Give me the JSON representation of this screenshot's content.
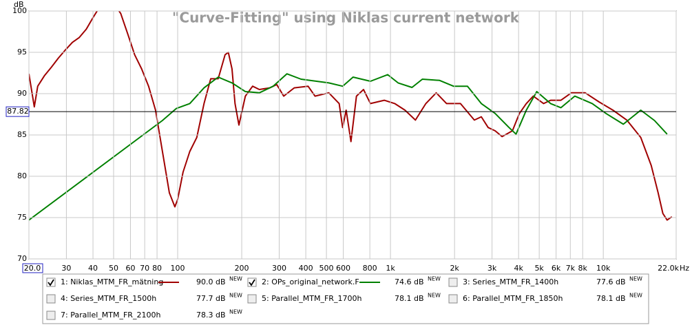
{
  "chart_data": {
    "type": "line",
    "title": "\"Curve-Fitting\" using Niklas current network",
    "y_label": "dB",
    "x_unit": "Hz",
    "x_scale": "log",
    "xlim": [
      20,
      22000
    ],
    "ylim": [
      70,
      100
    ],
    "xticks": [
      {
        "value": 20,
        "label": "20.0"
      },
      30,
      40,
      50,
      60,
      70,
      80,
      100,
      200,
      300,
      400,
      500,
      600,
      800,
      {
        "value": 1000,
        "label": "1k"
      },
      {
        "value": 2000,
        "label": "2k"
      },
      {
        "value": 3000,
        "label": "3k"
      },
      {
        "value": 4000,
        "label": "4k"
      },
      {
        "value": 5000,
        "label": "5k"
      },
      {
        "value": 6000,
        "label": "6k"
      },
      {
        "value": 7000,
        "label": "7k"
      },
      {
        "value": 8000,
        "label": "8k"
      },
      {
        "value": 10000,
        "label": "10k"
      },
      {
        "value": 22000,
        "label": "22.0k"
      }
    ],
    "yticks": [
      70,
      75,
      80,
      85,
      90,
      95,
      100
    ],
    "grid": true,
    "cursor_y": 87.82,
    "badge": "NEW",
    "series": [
      {
        "name": "1: Niklas_MTM_FR_mätning",
        "color": "#a00000",
        "checked": true,
        "level": {
          "value": 90.0,
          "label": "90.0 dB"
        },
        "x": [
          20,
          21.2,
          22,
          23.7,
          25.5,
          27.5,
          29.7,
          32,
          34.5,
          37.2,
          40,
          43,
          48.3,
          54,
          58.3,
          62.8,
          67.7,
          73,
          78.7,
          84.8,
          91.4,
          97,
          100,
          106,
          114,
          123,
          133,
          143,
          155,
          167,
          173,
          180,
          186,
          194,
          208,
          225,
          242,
          271,
          292,
          315,
          353,
          410,
          442,
          513,
          574,
          596,
          619,
          652,
          692,
          747,
          805,
          935,
          1047,
          1170,
          1310,
          1466,
          1640,
          1835,
          2132,
          2478,
          2672,
          2877,
          3104,
          3345,
          3741,
          4035,
          4348,
          4688,
          5244,
          5654,
          6324,
          7079,
          8222,
          9550,
          11100,
          12900,
          15000,
          16800,
          18100,
          19050,
          19950,
          21000
        ],
        "values": [
          92.4,
          88.4,
          90.9,
          92.2,
          93.2,
          94.3,
          95.3,
          96.2,
          96.8,
          97.8,
          99.2,
          100.5,
          101.5,
          99.7,
          97.2,
          94.7,
          93.0,
          90.9,
          88.0,
          83.0,
          78.0,
          76.3,
          77.2,
          80.5,
          83.0,
          84.7,
          88.8,
          91.8,
          91.8,
          94.7,
          95.0,
          93.0,
          88.8,
          86.2,
          89.7,
          90.9,
          90.5,
          90.7,
          91.1,
          89.7,
          90.7,
          90.9,
          89.7,
          90.1,
          88.8,
          85.9,
          88.0,
          84.2,
          89.7,
          90.5,
          88.8,
          89.2,
          88.8,
          88.0,
          86.8,
          88.8,
          90.1,
          88.8,
          88.8,
          86.8,
          87.2,
          85.9,
          85.5,
          84.8,
          85.5,
          87.6,
          88.8,
          89.7,
          88.8,
          89.2,
          89.2,
          90.1,
          90.1,
          89.0,
          88.0,
          86.8,
          84.7,
          81.3,
          78.0,
          75.5,
          74.7,
          75.1
        ]
      },
      {
        "name": "2: OPs_original_network.F",
        "color": "#008000",
        "checked": true,
        "level": {
          "value": 74.6,
          "label": "74.6 dB"
        },
        "x": [
          20,
          84.8,
          98.5,
          114,
          133,
          155,
          180,
          208,
          242,
          281,
          326,
          380,
          513,
          596,
          667,
          805,
          970,
          1086,
          1262,
          1412,
          1702,
          1978,
          2300,
          2672,
          3104,
          3606,
          3890,
          4348,
          4868,
          5654,
          6324,
          7345,
          8872,
          10300,
          12420,
          15000,
          17400,
          19950
        ],
        "values": [
          74.7,
          86.75,
          88.2,
          88.8,
          90.7,
          92.0,
          91.3,
          90.25,
          90.1,
          90.9,
          92.4,
          91.75,
          91.3,
          90.9,
          92.0,
          91.5,
          92.3,
          91.3,
          90.75,
          91.75,
          91.6,
          90.9,
          90.9,
          88.8,
          87.6,
          85.9,
          85.1,
          88.0,
          90.25,
          88.8,
          88.3,
          89.7,
          88.8,
          87.6,
          86.3,
          88.0,
          86.75,
          85.1
        ]
      },
      {
        "name": "3: Series_MTM_FR_1400h",
        "color": "#3030b0",
        "checked": false,
        "level": {
          "value": 77.6,
          "label": "77.6 dB"
        }
      },
      {
        "name": "4: Series_MTM_FR_1500h",
        "color": "#a020a0",
        "checked": false,
        "level": {
          "value": 77.7,
          "label": "77.7 dB"
        }
      },
      {
        "name": "5: Parallel_MTM_FR_1700h",
        "color": "#206070",
        "checked": false,
        "level": {
          "value": 78.1,
          "label": "78.1 dB"
        }
      },
      {
        "name": "6: Parallel_MTM_FR_1850h",
        "color": "#a07000",
        "checked": false,
        "level": {
          "value": 78.1,
          "label": "78.1 dB"
        }
      },
      {
        "name": "7: Parallel_MTM_FR_2100h",
        "color": "#209020",
        "checked": false,
        "level": {
          "value": 78.3,
          "label": "78.3 dB"
        }
      }
    ]
  }
}
